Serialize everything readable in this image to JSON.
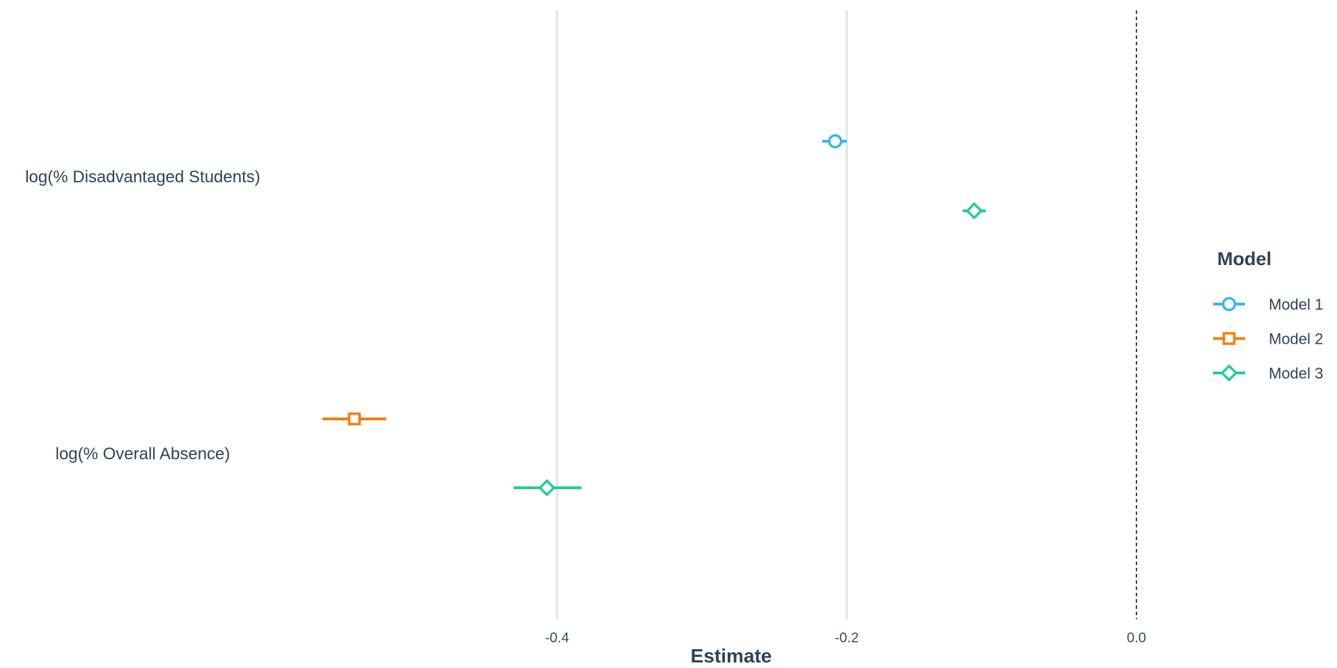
{
  "chart_data": {
    "type": "coefficient-plot",
    "xlabel": "Estimate",
    "x_ticks": [
      -0.4,
      -0.2,
      0.0
    ],
    "x_tick_labels": [
      "-0.4",
      "-0.2",
      "0.0"
    ],
    "xlim": [
      -0.78,
      0.14
    ],
    "reference_line": 0.0,
    "grid": "vertical major lines",
    "categories": [
      "log(% Disadvantaged Students)",
      "log(% Overall Absence)"
    ],
    "legend": {
      "title": "Model",
      "placement": "right"
    },
    "series": [
      {
        "name": "Model 1",
        "color": "#3bb5f5",
        "marker": "circle",
        "points": [
          {
            "category": "log(% Disadvantaged Students)",
            "estimate": -0.208,
            "ci_low": -0.217,
            "ci_high": -0.2
          }
        ]
      },
      {
        "name": "Model 2",
        "color": "#f57c11",
        "marker": "square",
        "points": [
          {
            "category": "log(% Overall Absence)",
            "estimate": -0.54,
            "ci_low": -0.562,
            "ci_high": -0.518
          }
        ]
      },
      {
        "name": "Model 3",
        "color": "#22cf8e",
        "marker": "diamond",
        "points": [
          {
            "category": "log(% Disadvantaged Students)",
            "estimate": -0.112,
            "ci_low": -0.12,
            "ci_high": -0.104
          },
          {
            "category": "log(% Overall Absence)",
            "estimate": -0.407,
            "ci_low": -0.43,
            "ci_high": -0.383
          }
        ]
      }
    ]
  }
}
